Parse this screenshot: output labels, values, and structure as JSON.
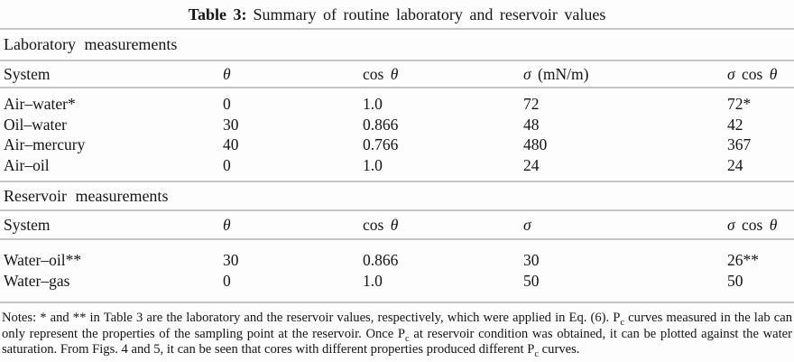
{
  "colors": {
    "bg": "#fdfdfd",
    "text": "#141414",
    "rule": "#c6c6c6"
  },
  "caption": {
    "label": "Table 3:",
    "text": "Summary of routine laboratory and reservoir values"
  },
  "table": {
    "sections": [
      {
        "name": "Laboratory measurements",
        "columns": [
          "System",
          "θ",
          "cos θ",
          "σ (mN/m)",
          "σ cos θ"
        ],
        "rows": [
          [
            "Air–water*",
            "0",
            "1.0",
            "72",
            "72*"
          ],
          [
            "Oil–water",
            "30",
            "0.866",
            "48",
            "42"
          ],
          [
            "Air–mercury",
            "40",
            "0.766",
            "480",
            "367"
          ],
          [
            "Air–oil",
            "0",
            "1.0",
            "24",
            "24"
          ]
        ]
      },
      {
        "name": "Reservoir measurements",
        "columns": [
          "System",
          "θ",
          "cos θ",
          "σ",
          "σ cos θ"
        ],
        "rows": [
          [
            "Water–oil**",
            "30",
            "0.866",
            "30",
            "26**"
          ],
          [
            "Water–gas",
            "0",
            "1.0",
            "50",
            "50"
          ]
        ]
      }
    ]
  },
  "notes": {
    "segments": [
      {
        "text": "Notes: * and ** in Table 3 are the laboratory and the reservoir values, respectively, which were applied in Eq. (6). P"
      },
      {
        "sub": "c"
      },
      {
        "text": " curves measured in the lab can only represent the properties of the sampling point at the reservoir. Once P"
      },
      {
        "sub": "c"
      },
      {
        "text": " at reservoir condition was obtained, it can be plotted against the water saturation. From Figs. 4 and 5, it can be seen that cores with different properties produced different P"
      },
      {
        "sub": "c"
      },
      {
        "text": " curves."
      }
    ]
  }
}
